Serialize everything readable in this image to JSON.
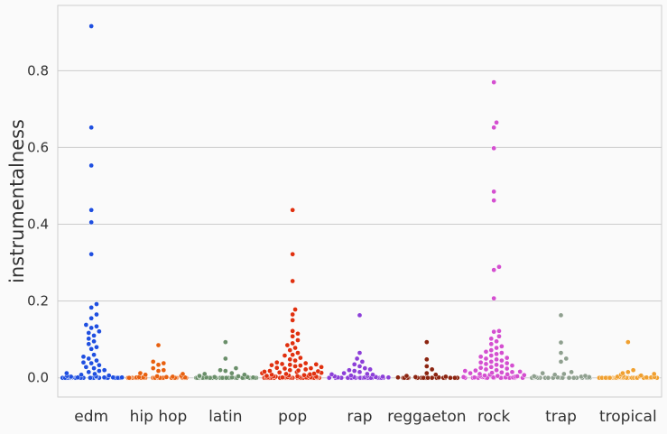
{
  "chart_data": {
    "type": "scatter",
    "subtype": "swarm",
    "title": "",
    "xlabel": "",
    "ylabel": "instrumentalness",
    "ylim": [
      -0.05,
      0.97
    ],
    "yticks": [
      0.0,
      0.2,
      0.4,
      0.6,
      0.8
    ],
    "ytick_labels": [
      "0.0",
      "0.2",
      "0.4",
      "0.6",
      "0.8"
    ],
    "grid": "horizontal",
    "legend": "none",
    "categories": [
      "edm",
      "hip hop",
      "latin",
      "pop",
      "rap",
      "reggaeton",
      "rock",
      "trap",
      "tropical"
    ],
    "series": [
      {
        "category": "edm",
        "color": "#1f4fe0",
        "values": [
          0.916,
          0.652,
          0.553,
          0.437,
          0.405,
          0.322,
          0.192,
          0.183,
          0.165,
          0.155,
          0.138,
          0.134,
          0.13,
          0.121,
          0.117,
          0.11,
          0.102,
          0.095,
          0.088,
          0.08,
          0.075,
          0.06,
          0.055,
          0.05,
          0.045,
          0.04,
          0.038,
          0.033,
          0.028,
          0.025,
          0.02,
          0.018,
          0.015,
          0.012,
          0.01,
          0.008,
          0.006,
          0.005,
          0.004,
          0.003,
          0.002,
          0.002,
          0.001,
          0.001,
          0.001,
          0.001,
          0.001,
          0.0,
          0.0,
          0.0,
          0.0,
          0.0,
          0.0,
          0.0,
          0.0,
          0.0,
          0.0,
          0.0,
          0.0,
          0.0,
          0.0,
          0.0,
          0.0,
          0.0
        ]
      },
      {
        "category": "hip hop",
        "color": "#e8600f",
        "values": [
          0.085,
          0.042,
          0.038,
          0.034,
          0.025,
          0.02,
          0.018,
          0.012,
          0.01,
          0.008,
          0.005,
          0.004,
          0.003,
          0.002,
          0.002,
          0.001,
          0.001,
          0.001,
          0.001,
          0.0,
          0.0,
          0.0,
          0.0,
          0.0,
          0.0,
          0.0,
          0.0,
          0.0,
          0.0,
          0.0,
          0.0,
          0.0,
          0.0,
          0.0,
          0.0,
          0.0,
          0.0,
          0.0,
          0.0,
          0.0,
          0.0,
          0.0,
          0.0,
          0.0,
          0.0,
          0.0,
          0.0,
          0.0,
          0.0,
          0.0
        ]
      },
      {
        "category": "latin",
        "color": "#6a8f6a",
        "values": [
          0.093,
          0.05,
          0.025,
          0.02,
          0.018,
          0.012,
          0.01,
          0.008,
          0.005,
          0.004,
          0.003,
          0.002,
          0.002,
          0.001,
          0.001,
          0.001,
          0.0,
          0.0,
          0.0,
          0.0,
          0.0,
          0.0,
          0.0,
          0.0,
          0.0,
          0.0,
          0.0,
          0.0,
          0.0,
          0.0,
          0.0,
          0.0,
          0.0,
          0.0,
          0.0,
          0.0,
          0.0,
          0.0,
          0.0,
          0.0,
          0.0,
          0.0,
          0.0,
          0.0,
          0.0,
          0.0,
          0.0
        ]
      },
      {
        "category": "pop",
        "color": "#e0300f",
        "values": [
          0.437,
          0.322,
          0.252,
          0.178,
          0.165,
          0.15,
          0.122,
          0.115,
          0.108,
          0.098,
          0.09,
          0.085,
          0.078,
          0.072,
          0.065,
          0.06,
          0.058,
          0.052,
          0.048,
          0.045,
          0.04,
          0.038,
          0.036,
          0.035,
          0.034,
          0.033,
          0.032,
          0.03,
          0.028,
          0.026,
          0.025,
          0.024,
          0.022,
          0.02,
          0.019,
          0.018,
          0.017,
          0.016,
          0.015,
          0.014,
          0.013,
          0.012,
          0.011,
          0.01,
          0.009,
          0.008,
          0.007,
          0.006,
          0.005,
          0.005,
          0.004,
          0.004,
          0.003,
          0.003,
          0.002,
          0.002,
          0.002,
          0.001,
          0.001,
          0.001,
          0.001,
          0.001,
          0.001,
          0.001,
          0.0,
          0.0,
          0.0,
          0.0,
          0.0,
          0.0,
          0.0,
          0.0,
          0.0,
          0.0,
          0.0,
          0.0,
          0.0,
          0.0,
          0.0,
          0.0,
          0.0,
          0.0,
          0.0,
          0.0,
          0.0,
          0.0,
          0.0,
          0.0,
          0.0,
          0.0
        ]
      },
      {
        "category": "rap",
        "color": "#8c3fd8",
        "values": [
          0.163,
          0.065,
          0.05,
          0.042,
          0.035,
          0.03,
          0.025,
          0.022,
          0.02,
          0.018,
          0.015,
          0.012,
          0.01,
          0.009,
          0.008,
          0.006,
          0.005,
          0.004,
          0.003,
          0.002,
          0.002,
          0.001,
          0.001,
          0.001,
          0.0,
          0.0,
          0.0,
          0.0,
          0.0,
          0.0,
          0.0,
          0.0,
          0.0,
          0.0,
          0.0,
          0.0,
          0.0,
          0.0,
          0.0,
          0.0,
          0.0,
          0.0,
          0.0,
          0.0,
          0.0,
          0.0,
          0.0,
          0.0,
          0.0,
          0.0
        ]
      },
      {
        "category": "reggaeton",
        "color": "#8b2410",
        "values": [
          0.093,
          0.048,
          0.03,
          0.022,
          0.012,
          0.008,
          0.005,
          0.003,
          0.002,
          0.001,
          0.001,
          0.0,
          0.0,
          0.0,
          0.0,
          0.0,
          0.0,
          0.0,
          0.0,
          0.0,
          0.0,
          0.0,
          0.0,
          0.0,
          0.0,
          0.0,
          0.0,
          0.0,
          0.0,
          0.0,
          0.0,
          0.0,
          0.0
        ]
      },
      {
        "category": "rock",
        "color": "#d44fd0",
        "values": [
          0.77,
          0.665,
          0.652,
          0.598,
          0.485,
          0.462,
          0.289,
          0.281,
          0.207,
          0.122,
          0.12,
          0.108,
          0.102,
          0.095,
          0.088,
          0.082,
          0.078,
          0.072,
          0.068,
          0.065,
          0.062,
          0.058,
          0.055,
          0.052,
          0.05,
          0.048,
          0.045,
          0.042,
          0.04,
          0.038,
          0.036,
          0.034,
          0.032,
          0.03,
          0.028,
          0.026,
          0.024,
          0.022,
          0.02,
          0.019,
          0.018,
          0.016,
          0.015,
          0.014,
          0.013,
          0.012,
          0.01,
          0.009,
          0.008,
          0.007,
          0.006,
          0.005,
          0.005,
          0.004,
          0.003,
          0.003,
          0.002,
          0.002,
          0.002,
          0.001,
          0.001,
          0.001,
          0.001,
          0.0,
          0.0,
          0.0,
          0.0,
          0.0,
          0.0,
          0.0,
          0.0,
          0.0,
          0.0,
          0.0,
          0.0
        ]
      },
      {
        "category": "trap",
        "color": "#8fa08f",
        "values": [
          0.163,
          0.092,
          0.065,
          0.05,
          0.042,
          0.015,
          0.012,
          0.01,
          0.008,
          0.005,
          0.004,
          0.003,
          0.002,
          0.002,
          0.001,
          0.001,
          0.001,
          0.0,
          0.0,
          0.0,
          0.0,
          0.0,
          0.0,
          0.0,
          0.0,
          0.0,
          0.0,
          0.0,
          0.0,
          0.0,
          0.0,
          0.0,
          0.0,
          0.0,
          0.0
        ]
      },
      {
        "category": "tropical",
        "color": "#f0a030",
        "values": [
          0.093,
          0.02,
          0.015,
          0.012,
          0.01,
          0.008,
          0.006,
          0.005,
          0.004,
          0.003,
          0.002,
          0.002,
          0.001,
          0.001,
          0.001,
          0.001,
          0.0,
          0.0,
          0.0,
          0.0,
          0.0,
          0.0,
          0.0,
          0.0,
          0.0,
          0.0,
          0.0,
          0.0,
          0.0,
          0.0,
          0.0,
          0.0,
          0.0,
          0.0,
          0.0,
          0.0,
          0.0,
          0.0,
          0.0,
          0.0,
          0.0,
          0.0,
          0.0,
          0.0,
          0.0,
          0.0
        ]
      }
    ]
  }
}
